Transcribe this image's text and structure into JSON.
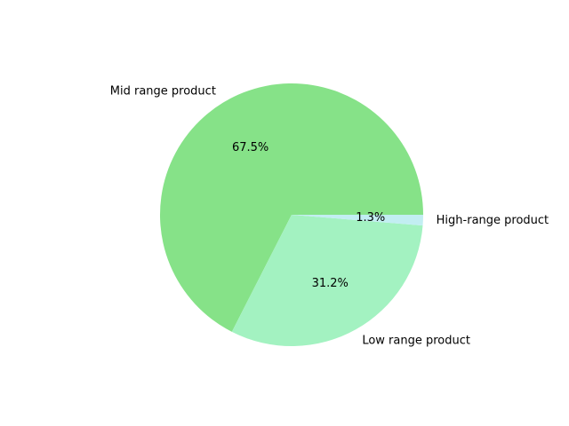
{
  "chart_data": {
    "type": "pie",
    "title": "",
    "categories": [
      "Mid range product",
      "Low range product",
      "High-range product"
    ],
    "values": [
      67.5,
      31.2,
      1.3
    ],
    "percent_labels": [
      "67.5%",
      "31.2%",
      "1.3%"
    ],
    "colors": [
      "#86e288",
      "#a3f2c1",
      "#c2eef2"
    ],
    "start_angle_deg": 0,
    "direction": "counterclockwise",
    "legend": "none",
    "grid": false
  }
}
